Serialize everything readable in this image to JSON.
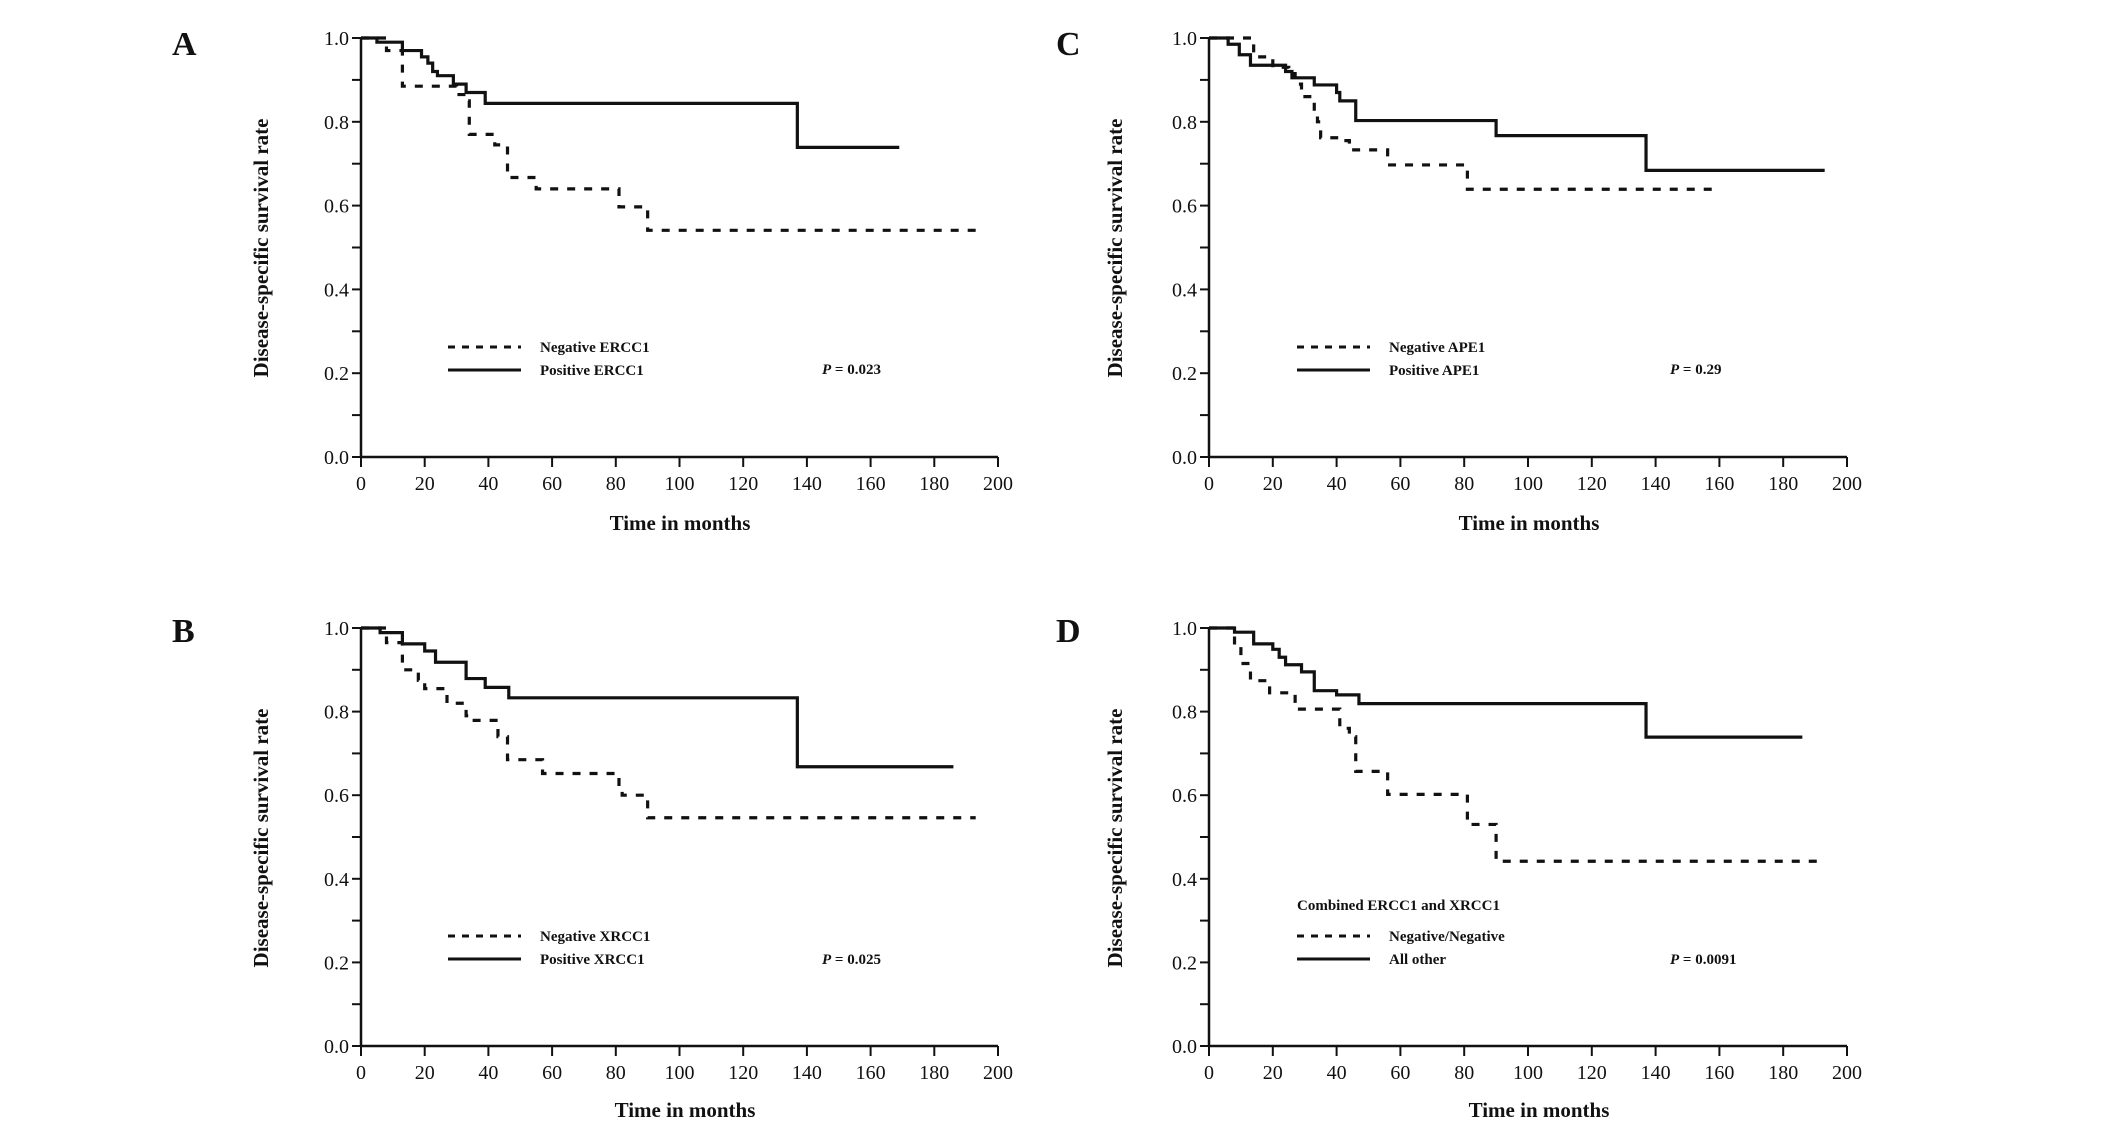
{
  "chart_data": [
    {
      "type": "line",
      "panel": "A",
      "xlabel": "Time in months",
      "ylabel": "Disease-specific survival rate",
      "xlim": [
        0,
        200
      ],
      "ylim": [
        0,
        1.0
      ],
      "xticks": [
        "0",
        "20",
        "40",
        "60",
        "80",
        "100",
        "120",
        "140",
        "160",
        "180",
        "200"
      ],
      "yticks": [
        "0.0",
        "0.2",
        "0.4",
        "0.6",
        "0.8",
        "1.0"
      ],
      "legend_title": "",
      "annotation": "P = 0.023",
      "series": [
        {
          "name": "Negative ERCC1",
          "style": "dashed",
          "x": [
            0,
            8,
            13,
            30,
            33,
            34,
            42,
            46,
            55,
            81,
            90,
            193
          ],
          "y": [
            1.0,
            0.97,
            0.885,
            0.865,
            0.85,
            0.77,
            0.745,
            0.667,
            0.64,
            0.597,
            0.541,
            0.541
          ]
        },
        {
          "name": "Positive ERCC1",
          "style": "solid",
          "x": [
            0,
            5,
            13,
            19,
            21,
            22.5,
            24,
            29,
            33,
            39,
            137,
            169
          ],
          "y": [
            1.0,
            0.99,
            0.97,
            0.955,
            0.94,
            0.92,
            0.91,
            0.89,
            0.87,
            0.844,
            0.739,
            0.739
          ]
        }
      ]
    },
    {
      "type": "line",
      "panel": "B",
      "xlabel": "Time in months",
      "ylabel": "Disease-specific survival rate",
      "xlim": [
        0,
        200
      ],
      "ylim": [
        0,
        1.0
      ],
      "xticks": [
        "0",
        "20",
        "40",
        "60",
        "80",
        "100",
        "120",
        "140",
        "160",
        "180",
        "200"
      ],
      "yticks": [
        "0.0",
        "0.2",
        "0.4",
        "0.6",
        "0.8",
        "1.0"
      ],
      "legend_title": "",
      "annotation": "P = 0.025",
      "series": [
        {
          "name": "Negative XRCC1",
          "style": "dashed",
          "x": [
            0,
            8,
            13,
            18,
            20,
            27,
            33,
            35,
            43,
            46,
            57,
            81,
            82,
            90,
            193
          ],
          "y": [
            1.0,
            0.965,
            0.9,
            0.875,
            0.855,
            0.82,
            0.79,
            0.779,
            0.74,
            0.685,
            0.652,
            0.62,
            0.6,
            0.546,
            0.546
          ]
        },
        {
          "name": "Positive XRCC1",
          "style": "solid",
          "x": [
            0,
            6,
            13,
            20,
            23.4,
            33,
            39,
            46.4,
            137,
            186
          ],
          "y": [
            1.0,
            0.989,
            0.962,
            0.945,
            0.918,
            0.879,
            0.858,
            0.833,
            0.668,
            0.668
          ]
        }
      ]
    },
    {
      "type": "line",
      "panel": "C",
      "xlabel": "Time in months",
      "ylabel": "Disease-specific survival rate",
      "xlim": [
        0,
        200
      ],
      "ylim": [
        0,
        1.0
      ],
      "xticks": [
        "0",
        "20",
        "40",
        "60",
        "80",
        "100",
        "120",
        "140",
        "160",
        "180",
        "200"
      ],
      "yticks": [
        "0.0",
        "0.2",
        "0.4",
        "0.6",
        "0.8",
        "1.0"
      ],
      "legend_title": "",
      "annotation": "P = 0.29",
      "series": [
        {
          "name": "Negative APE1",
          "style": "dashed",
          "x": [
            0,
            13,
            14,
            20,
            25,
            27,
            29,
            33,
            34,
            35,
            40,
            44,
            56,
            81,
            160
          ],
          "y": [
            1.0,
            1.0,
            0.955,
            0.93,
            0.915,
            0.89,
            0.86,
            0.82,
            0.8,
            0.762,
            0.755,
            0.733,
            0.697,
            0.639,
            0.639
          ]
        },
        {
          "name": "Positive APE1",
          "style": "solid",
          "x": [
            0,
            6,
            7,
            9.5,
            13,
            24,
            26,
            33,
            40,
            41,
            46,
            90,
            137,
            193
          ],
          "y": [
            1.0,
            0.985,
            0.985,
            0.96,
            0.935,
            0.92,
            0.905,
            0.888,
            0.87,
            0.85,
            0.803,
            0.767,
            0.684,
            0.684
          ]
        }
      ]
    },
    {
      "type": "line",
      "panel": "D",
      "xlabel": "Time in months",
      "ylabel": "Disease-specific survival rate",
      "xlim": [
        0,
        200
      ],
      "ylim": [
        0,
        1.0
      ],
      "xticks": [
        "0",
        "20",
        "40",
        "60",
        "80",
        "100",
        "120",
        "140",
        "160",
        "180",
        "200"
      ],
      "yticks": [
        "0.0",
        "0.2",
        "0.4",
        "0.6",
        "0.8",
        "1.0"
      ],
      "legend_title": "Combined ERCC1 and XRCC1",
      "annotation": "P = 0.0091",
      "series": [
        {
          "name": "Negative/Negative",
          "style": "dashed",
          "x": [
            0,
            8,
            10,
            13,
            19,
            27,
            41,
            44,
            46,
            56,
            81,
            90,
            193
          ],
          "y": [
            1.0,
            0.96,
            0.915,
            0.874,
            0.845,
            0.806,
            0.76,
            0.74,
            0.657,
            0.602,
            0.53,
            0.442,
            0.442
          ]
        },
        {
          "name": "All other",
          "style": "solid",
          "x": [
            0,
            8,
            14,
            20,
            22,
            24,
            29,
            33,
            40,
            47,
            137,
            186
          ],
          "y": [
            1.0,
            0.99,
            0.962,
            0.949,
            0.93,
            0.912,
            0.895,
            0.85,
            0.84,
            0.819,
            0.739,
            0.739
          ]
        }
      ]
    }
  ]
}
